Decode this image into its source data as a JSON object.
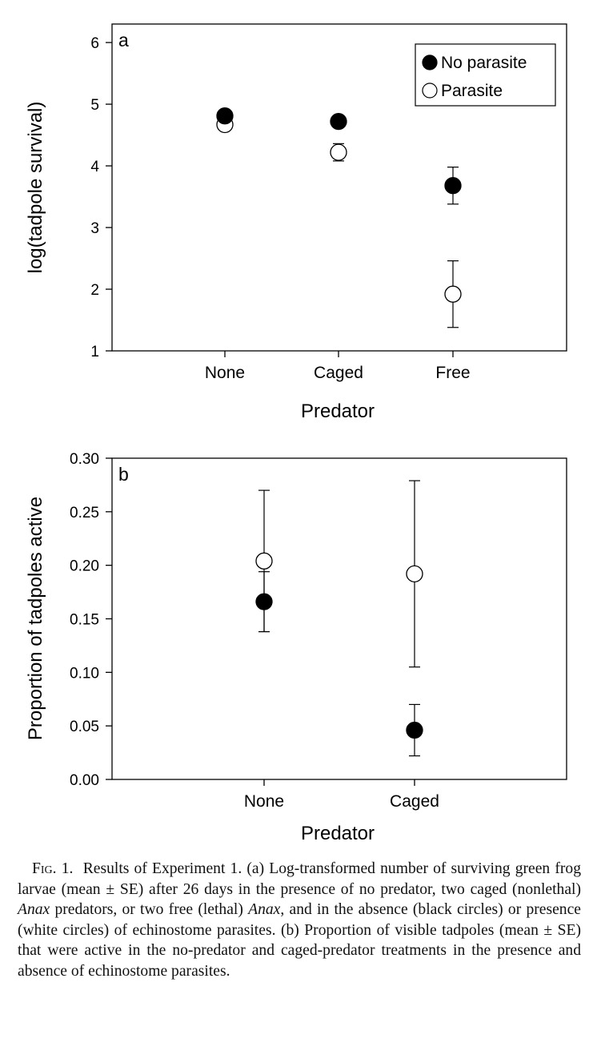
{
  "chart_data": [
    {
      "panel_label": "a",
      "type": "scatter",
      "categories": [
        "None",
        "Caged",
        "Free"
      ],
      "xlabel": "Predator",
      "ylabel": "log(tadpole survival)",
      "ylim": [
        1,
        6.3
      ],
      "yticks": [
        1,
        2,
        3,
        4,
        5,
        6
      ],
      "ytick_labels": [
        "1",
        "2",
        "3",
        "4",
        "5",
        "6"
      ],
      "legend_position": "top-right",
      "series": [
        {
          "name": "No parasite",
          "marker": "filled",
          "values": [
            4.81,
            4.72,
            3.68
          ],
          "se": [
            0.0,
            0.0,
            0.3
          ]
        },
        {
          "name": "Parasite",
          "marker": "open",
          "values": [
            4.67,
            4.22,
            1.92
          ],
          "se": [
            0.0,
            0.14,
            0.54
          ]
        }
      ]
    },
    {
      "panel_label": "b",
      "type": "scatter",
      "categories": [
        "None",
        "Caged"
      ],
      "xlabel": "Predator",
      "ylabel": "Proportion of tadpoles active",
      "ylim": [
        0.0,
        0.3
      ],
      "yticks": [
        0,
        0.05,
        0.1,
        0.15,
        0.2,
        0.25,
        0.3
      ],
      "ytick_labels": [
        "0.00",
        "0.05",
        "0.10",
        "0.15",
        "0.20",
        "0.25",
        "0.30"
      ],
      "series": [
        {
          "name": "No parasite",
          "marker": "filled",
          "values": [
            0.166,
            0.046
          ],
          "se": [
            0.028,
            0.024
          ]
        },
        {
          "name": "Parasite",
          "marker": "open",
          "values": [
            0.204,
            0.192
          ],
          "se": [
            0.066,
            0.087
          ]
        }
      ]
    }
  ],
  "caption": {
    "fig_label": "Fig",
    "fig_number": ". 1.",
    "text_1": "Results of Experiment 1. (a) Log-transformed number of surviving green frog larvae (mean ± SE) after 26 days in the presence of no predator, two caged (nonlethal) ",
    "anax_1": "Anax",
    "text_2": " predators, or two free (lethal) ",
    "anax_2": "Anax",
    "text_3": ", and in the absence (black circles) or presence (white circles) of echinostome parasites. (b) Proportion of visible tadpoles (mean ± SE) that were active in the no-predator and caged-predator treatments in the presence and absence of echinostome parasites."
  }
}
